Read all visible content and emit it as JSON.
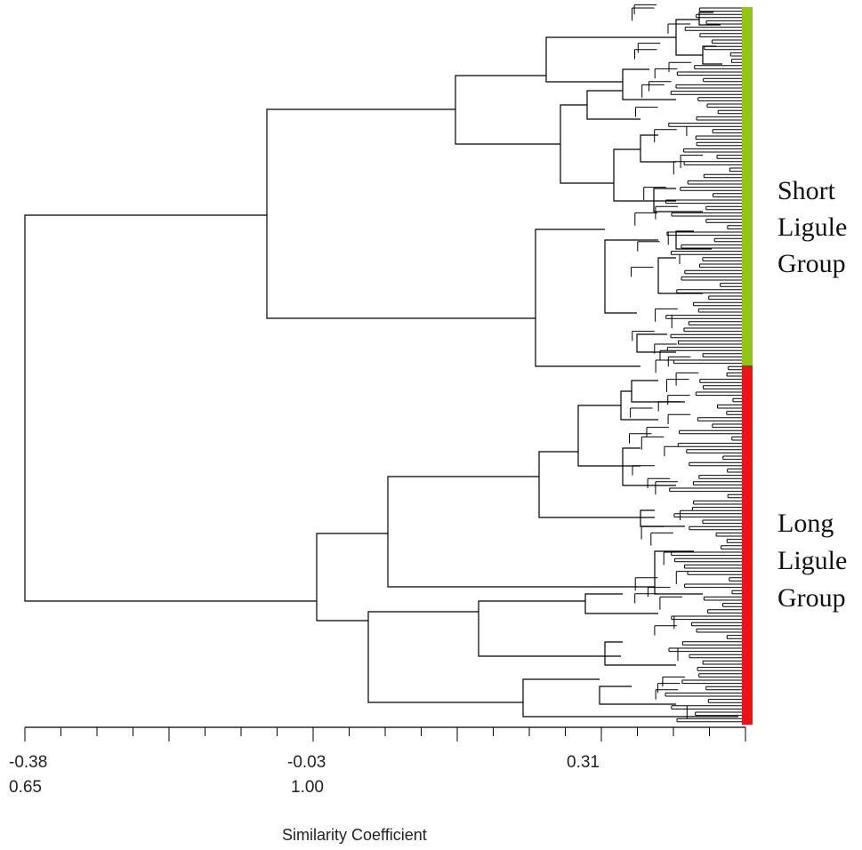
{
  "groups": [
    {
      "lines": [
        "Short",
        "Ligule",
        "Group"
      ],
      "color": "#92c416"
    },
    {
      "lines": [
        "Long",
        "Ligule",
        "Group"
      ],
      "color": "#e8141a"
    }
  ],
  "axis": {
    "title": "Similarity Coefficient",
    "tick_labels": [
      {
        "row1": "-0.38",
        "row2": "0.65"
      },
      {
        "row1": "-0.03",
        "row2": "1.00"
      },
      {
        "row1": "0.31",
        "row2": ""
      }
    ]
  },
  "colors": {
    "line": "#000000"
  }
}
